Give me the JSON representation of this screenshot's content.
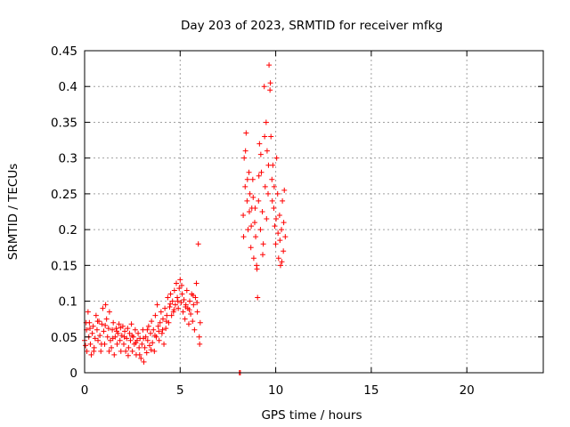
{
  "chart_data": {
    "type": "scatter",
    "title": "Day 203 of 2023, SRMTID for receiver mfkg",
    "xlabel": "GPS time / hours",
    "ylabel": "SRMTID / TECUs",
    "xlim": [
      0,
      24
    ],
    "ylim": [
      0,
      0.45
    ],
    "xticks": [
      0,
      5,
      10,
      15,
      20
    ],
    "xtick_labels": [
      "0",
      "5",
      "10",
      "15",
      "20"
    ],
    "yticks": [
      0,
      0.05,
      0.1,
      0.15,
      0.2,
      0.25,
      0.3,
      0.35,
      0.4,
      0.45
    ],
    "ytick_labels": [
      "0",
      "0.05",
      "0.1",
      "0.15",
      "0.2",
      "0.25",
      "0.3",
      "0.35",
      "0.4",
      "0.45"
    ],
    "grid": true,
    "marker": "plus",
    "color": "#ff0000",
    "series": [
      {
        "name": "SRMTID",
        "points": [
          [
            0.0,
            0.045
          ],
          [
            0.05,
            0.038
          ],
          [
            0.1,
            0.06
          ],
          [
            0.12,
            0.03
          ],
          [
            0.18,
            0.085
          ],
          [
            0.22,
            0.05
          ],
          [
            0.25,
            0.07
          ],
          [
            0.3,
            0.04
          ],
          [
            0.35,
            0.025
          ],
          [
            0.4,
            0.055
          ],
          [
            0.45,
            0.065
          ],
          [
            0.5,
            0.035
          ],
          [
            0.55,
            0.048
          ],
          [
            0.6,
            0.08
          ],
          [
            0.65,
            0.06
          ],
          [
            0.7,
            0.045
          ],
          [
            0.75,
            0.072
          ],
          [
            0.8,
            0.052
          ],
          [
            0.85,
            0.03
          ],
          [
            0.9,
            0.068
          ],
          [
            0.95,
            0.09
          ],
          [
            1.0,
            0.058
          ],
          [
            1.05,
            0.04
          ],
          [
            1.1,
            0.095
          ],
          [
            1.15,
            0.075
          ],
          [
            1.2,
            0.05
          ],
          [
            1.25,
            0.062
          ],
          [
            1.3,
            0.085
          ],
          [
            1.35,
            0.045
          ],
          [
            1.4,
            0.035
          ],
          [
            1.45,
            0.06
          ],
          [
            1.5,
            0.07
          ],
          [
            1.55,
            0.025
          ],
          [
            1.6,
            0.05
          ],
          [
            1.65,
            0.062
          ],
          [
            1.7,
            0.04
          ],
          [
            1.75,
            0.055
          ],
          [
            1.8,
            0.068
          ],
          [
            1.85,
            0.045
          ],
          [
            1.9,
            0.03
          ],
          [
            1.95,
            0.052
          ],
          [
            2.0,
            0.065
          ],
          [
            2.05,
            0.04
          ],
          [
            2.1,
            0.058
          ],
          [
            2.15,
            0.03
          ],
          [
            2.2,
            0.048
          ],
          [
            2.25,
            0.062
          ],
          [
            2.3,
            0.035
          ],
          [
            2.35,
            0.055
          ],
          [
            2.4,
            0.045
          ],
          [
            2.45,
            0.068
          ],
          [
            2.5,
            0.03
          ],
          [
            2.55,
            0.05
          ],
          [
            2.6,
            0.04
          ],
          [
            2.65,
            0.06
          ],
          [
            2.7,
            0.025
          ],
          [
            2.75,
            0.045
          ],
          [
            2.8,
            0.055
          ],
          [
            2.85,
            0.035
          ],
          [
            2.9,
            0.048
          ],
          [
            2.95,
            0.02
          ],
          [
            3.0,
            0.04
          ],
          [
            3.05,
            0.06
          ],
          [
            3.1,
            0.015
          ],
          [
            3.15,
            0.035
          ],
          [
            3.2,
            0.05
          ],
          [
            3.25,
            0.028
          ],
          [
            3.3,
            0.045
          ],
          [
            3.35,
            0.065
          ],
          [
            3.4,
            0.038
          ],
          [
            3.45,
            0.055
          ],
          [
            3.5,
            0.072
          ],
          [
            3.55,
            0.042
          ],
          [
            3.6,
            0.06
          ],
          [
            3.65,
            0.03
          ],
          [
            3.7,
            0.08
          ],
          [
            3.75,
            0.05
          ],
          [
            3.8,
            0.095
          ],
          [
            3.85,
            0.065
          ],
          [
            3.9,
            0.045
          ],
          [
            3.95,
            0.07
          ],
          [
            4.0,
            0.085
          ],
          [
            4.05,
            0.055
          ],
          [
            4.1,
            0.075
          ],
          [
            4.15,
            0.04
          ],
          [
            4.2,
            0.09
          ],
          [
            4.25,
            0.062
          ],
          [
            4.3,
            0.08
          ],
          [
            4.35,
            0.105
          ],
          [
            4.4,
            0.07
          ],
          [
            4.45,
            0.092
          ],
          [
            4.5,
            0.11
          ],
          [
            4.55,
            0.08
          ],
          [
            4.6,
            0.1
          ],
          [
            4.65,
            0.085
          ],
          [
            4.7,
            0.115
          ],
          [
            4.75,
            0.095
          ],
          [
            4.8,
            0.125
          ],
          [
            4.85,
            0.105
          ],
          [
            4.9,
            0.09
          ],
          [
            4.95,
            0.118
          ],
          [
            5.0,
            0.13
          ],
          [
            5.05,
            0.098
          ],
          [
            5.1,
            0.11
          ],
          [
            5.15,
            0.085
          ],
          [
            5.2,
            0.102
          ],
          [
            5.25,
            0.075
          ],
          [
            5.3,
            0.095
          ],
          [
            5.35,
            0.115
          ],
          [
            5.4,
            0.09
          ],
          [
            5.45,
            0.068
          ],
          [
            5.5,
            0.1
          ],
          [
            5.55,
            0.082
          ],
          [
            5.6,
            0.11
          ],
          [
            5.65,
            0.072
          ],
          [
            5.7,
            0.095
          ],
          [
            5.75,
            0.06
          ],
          [
            5.8,
            0.105
          ],
          [
            5.85,
            0.125
          ],
          [
            5.9,
            0.085
          ],
          [
            5.95,
            0.18
          ],
          [
            6.0,
            0.05
          ],
          [
            6.02,
            0.04
          ],
          [
            6.05,
            0.07
          ],
          [
            0.08,
            0.07
          ],
          [
            0.28,
            0.062
          ],
          [
            0.48,
            0.03
          ],
          [
            0.68,
            0.072
          ],
          [
            0.88,
            0.04
          ],
          [
            1.08,
            0.066
          ],
          [
            1.28,
            0.03
          ],
          [
            1.48,
            0.048
          ],
          [
            1.68,
            0.058
          ],
          [
            1.88,
            0.063
          ],
          [
            2.08,
            0.05
          ],
          [
            2.28,
            0.024
          ],
          [
            2.48,
            0.052
          ],
          [
            2.68,
            0.042
          ],
          [
            2.88,
            0.025
          ],
          [
            3.08,
            0.048
          ],
          [
            3.28,
            0.06
          ],
          [
            3.48,
            0.032
          ],
          [
            3.68,
            0.052
          ],
          [
            3.88,
            0.058
          ],
          [
            4.08,
            0.06
          ],
          [
            4.28,
            0.072
          ],
          [
            4.48,
            0.096
          ],
          [
            4.68,
            0.088
          ],
          [
            4.88,
            0.1
          ],
          [
            5.08,
            0.122
          ],
          [
            5.28,
            0.092
          ],
          [
            5.48,
            0.088
          ],
          [
            5.68,
            0.108
          ],
          [
            5.88,
            0.098
          ],
          [
            8.1,
            0.0
          ],
          [
            8.15,
            0.0
          ],
          [
            8.3,
            0.22
          ],
          [
            8.35,
            0.3
          ],
          [
            8.4,
            0.26
          ],
          [
            8.45,
            0.335
          ],
          [
            8.5,
            0.24
          ],
          [
            8.55,
            0.2
          ],
          [
            8.6,
            0.28
          ],
          [
            8.65,
            0.25
          ],
          [
            8.7,
            0.175
          ],
          [
            8.75,
            0.23
          ],
          [
            8.8,
            0.27
          ],
          [
            8.85,
            0.16
          ],
          [
            8.9,
            0.21
          ],
          [
            8.95,
            0.19
          ],
          [
            9.0,
            0.15
          ],
          [
            9.05,
            0.105
          ],
          [
            9.1,
            0.24
          ],
          [
            9.15,
            0.32
          ],
          [
            9.2,
            0.2
          ],
          [
            9.25,
            0.28
          ],
          [
            9.3,
            0.225
          ],
          [
            9.35,
            0.18
          ],
          [
            9.4,
            0.4
          ],
          [
            9.45,
            0.26
          ],
          [
            9.5,
            0.35
          ],
          [
            9.55,
            0.31
          ],
          [
            9.6,
            0.25
          ],
          [
            9.65,
            0.43
          ],
          [
            9.7,
            0.395
          ],
          [
            9.75,
            0.33
          ],
          [
            9.8,
            0.27
          ],
          [
            9.85,
            0.29
          ],
          [
            9.9,
            0.23
          ],
          [
            9.95,
            0.205
          ],
          [
            10.0,
            0.18
          ],
          [
            10.05,
            0.3
          ],
          [
            10.1,
            0.25
          ],
          [
            10.15,
            0.16
          ],
          [
            10.2,
            0.22
          ],
          [
            10.25,
            0.15
          ],
          [
            10.3,
            0.2
          ],
          [
            10.35,
            0.24
          ],
          [
            10.4,
            0.17
          ],
          [
            10.45,
            0.255
          ],
          [
            10.5,
            0.19
          ],
          [
            8.32,
            0.19
          ],
          [
            8.42,
            0.31
          ],
          [
            8.52,
            0.27
          ],
          [
            8.62,
            0.225
          ],
          [
            8.72,
            0.205
          ],
          [
            8.82,
            0.245
          ],
          [
            8.92,
            0.23
          ],
          [
            9.02,
            0.145
          ],
          [
            9.12,
            0.275
          ],
          [
            9.22,
            0.305
          ],
          [
            9.32,
            0.165
          ],
          [
            9.42,
            0.33
          ],
          [
            9.52,
            0.215
          ],
          [
            9.62,
            0.29
          ],
          [
            9.72,
            0.405
          ],
          [
            9.82,
            0.24
          ],
          [
            9.92,
            0.26
          ],
          [
            10.02,
            0.215
          ],
          [
            10.12,
            0.195
          ],
          [
            10.22,
            0.185
          ],
          [
            10.32,
            0.155
          ],
          [
            10.42,
            0.21
          ]
        ]
      }
    ]
  }
}
